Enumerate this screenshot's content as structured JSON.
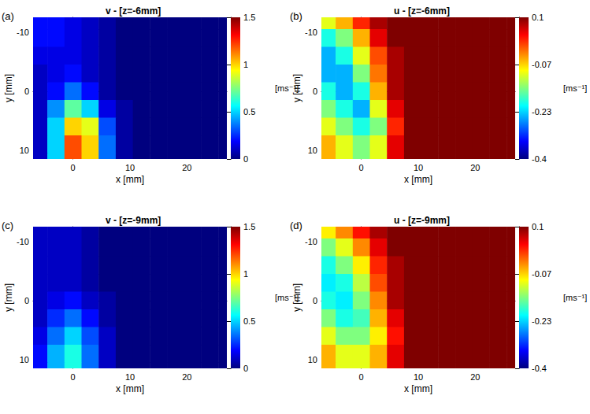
{
  "chart_data": [
    {
      "type": "heatmap",
      "panel": "(a)",
      "title": "v - [z=-6mm]",
      "x_label": "x [mm]",
      "y_label": "y [mm]",
      "grid": false,
      "xlim": [
        -7,
        27
      ],
      "ylim": [
        -12.5,
        11.5
      ],
      "xticks": [
        0,
        10,
        20
      ],
      "yticks": [
        -10,
        0,
        10
      ],
      "x": [
        -6,
        -3,
        0,
        3,
        6,
        9,
        12,
        15,
        18,
        21,
        24,
        27
      ],
      "y": [
        -12,
        -9,
        -6,
        -3,
        0,
        3,
        6,
        9,
        12
      ],
      "values": [
        [
          0.2,
          0.2,
          0.15,
          0.1,
          0.05,
          0,
          0,
          0,
          0,
          0,
          0,
          0
        ],
        [
          0.2,
          0.2,
          0.15,
          0.1,
          0.05,
          0,
          0,
          0,
          0,
          0,
          0,
          0
        ],
        [
          0.15,
          0.15,
          0.15,
          0.1,
          0.05,
          0,
          0,
          0,
          0,
          0,
          0,
          0
        ],
        [
          0.1,
          0.15,
          0.2,
          0.1,
          0.05,
          0,
          0,
          0,
          0,
          0,
          0,
          0
        ],
        [
          0.1,
          0.2,
          0.35,
          0.2,
          0.05,
          0,
          0,
          0,
          0,
          0,
          0,
          0
        ],
        [
          0.1,
          0.4,
          0.7,
          0.5,
          0.15,
          0.05,
          0,
          0,
          0,
          0,
          0,
          0
        ],
        [
          0.1,
          0.5,
          1.0,
          0.9,
          0.3,
          0.05,
          0,
          0,
          0,
          0,
          0,
          0
        ],
        [
          0.1,
          0.5,
          1.2,
          1.0,
          0.35,
          0.05,
          0,
          0,
          0,
          0,
          0,
          0
        ],
        [
          0.1,
          0.5,
          1.2,
          1.0,
          0.35,
          0.05,
          0,
          0,
          0,
          0,
          0,
          0
        ]
      ],
      "zlim": [
        0,
        1.5
      ],
      "zticks": [
        0,
        0.5,
        1,
        1.5
      ],
      "z_label": "[ms⁻¹]"
    },
    {
      "type": "heatmap",
      "panel": "(b)",
      "title": "u - [z=-6mm]",
      "x_label": "x [mm]",
      "y_label": "y [mm]",
      "grid": false,
      "xlim": [
        -7,
        27
      ],
      "ylim": [
        -12.5,
        11.5
      ],
      "xticks": [
        0,
        10,
        20
      ],
      "yticks": [
        -10,
        0,
        10
      ],
      "x": [
        -6,
        -3,
        0,
        3,
        6,
        9,
        12,
        15,
        18,
        21,
        24,
        27
      ],
      "y": [
        -12,
        -9,
        -6,
        -3,
        0,
        3,
        6,
        9,
        12
      ],
      "values": [
        [
          -0.1,
          -0.05,
          0.02,
          0.08,
          0.1,
          0.1,
          0.1,
          0.1,
          0.1,
          0.1,
          0.1,
          0.1
        ],
        [
          -0.2,
          -0.15,
          -0.05,
          0.05,
          0.1,
          0.1,
          0.1,
          0.1,
          0.1,
          0.1,
          0.1,
          0.1
        ],
        [
          -0.25,
          -0.2,
          -0.1,
          0.0,
          0.08,
          0.1,
          0.1,
          0.1,
          0.1,
          0.1,
          0.1,
          0.1
        ],
        [
          -0.25,
          -0.25,
          -0.15,
          -0.02,
          0.08,
          0.1,
          0.1,
          0.1,
          0.1,
          0.1,
          0.1,
          0.1
        ],
        [
          -0.2,
          -0.25,
          -0.2,
          -0.05,
          0.08,
          0.1,
          0.1,
          0.1,
          0.1,
          0.1,
          0.1,
          0.1
        ],
        [
          -0.15,
          -0.2,
          -0.25,
          -0.1,
          0.05,
          0.1,
          0.1,
          0.1,
          0.1,
          0.1,
          0.1,
          0.1
        ],
        [
          -0.1,
          -0.15,
          -0.2,
          -0.15,
          0.02,
          0.1,
          0.1,
          0.1,
          0.1,
          0.1,
          0.1,
          0.1
        ],
        [
          -0.05,
          -0.1,
          -0.15,
          -0.1,
          0.05,
          0.1,
          0.1,
          0.1,
          0.1,
          0.1,
          0.1,
          0.1
        ],
        [
          -0.05,
          -0.1,
          -0.15,
          -0.1,
          0.05,
          0.1,
          0.1,
          0.1,
          0.1,
          0.1,
          0.1,
          0.1
        ]
      ],
      "zlim": [
        -0.4,
        0.1
      ],
      "zticks": [
        -0.4,
        {
          "value": -0.2333,
          "label": "-0.23"
        },
        {
          "value": -0.0667,
          "label": "-0.07"
        },
        0.1
      ],
      "z_label": "[ms⁻¹]"
    },
    {
      "type": "heatmap",
      "panel": "(c)",
      "title": "v - [z=-9mm]",
      "x_label": "x [mm]",
      "y_label": "y [mm]",
      "grid": false,
      "xlim": [
        -7,
        27
      ],
      "ylim": [
        -12.5,
        11.5
      ],
      "xticks": [
        0,
        10,
        20
      ],
      "yticks": [
        -10,
        0,
        10
      ],
      "x": [
        -6,
        -3,
        0,
        3,
        6,
        9,
        12,
        15,
        18,
        21,
        24,
        27
      ],
      "y": [
        -12,
        -9,
        -6,
        -3,
        0,
        3,
        6,
        9,
        12
      ],
      "values": [
        [
          0.1,
          0.1,
          0.1,
          0.05,
          0,
          0,
          0,
          0,
          0,
          0,
          0,
          0
        ],
        [
          0.1,
          0.1,
          0.1,
          0.05,
          0,
          0,
          0,
          0,
          0,
          0,
          0,
          0
        ],
        [
          0.1,
          0.1,
          0.1,
          0.05,
          0,
          0,
          0,
          0,
          0,
          0,
          0,
          0
        ],
        [
          0.1,
          0.1,
          0.1,
          0.05,
          0,
          0,
          0,
          0,
          0,
          0,
          0,
          0
        ],
        [
          0.1,
          0.15,
          0.2,
          0.1,
          0.05,
          0,
          0,
          0,
          0,
          0,
          0,
          0
        ],
        [
          0.1,
          0.25,
          0.35,
          0.2,
          0.05,
          0,
          0,
          0,
          0,
          0,
          0,
          0
        ],
        [
          0.15,
          0.35,
          0.5,
          0.3,
          0.1,
          0,
          0,
          0,
          0,
          0,
          0,
          0
        ],
        [
          0.2,
          0.45,
          0.6,
          0.35,
          0.1,
          0,
          0,
          0,
          0,
          0,
          0,
          0
        ],
        [
          0.2,
          0.45,
          0.6,
          0.35,
          0.1,
          0,
          0,
          0,
          0,
          0,
          0,
          0
        ]
      ],
      "zlim": [
        0,
        1.5
      ],
      "zticks": [
        0,
        0.5,
        1,
        1.5
      ],
      "z_label": "[ms⁻¹]"
    },
    {
      "type": "heatmap",
      "panel": "(d)",
      "title": "u - [z=-9mm]",
      "x_label": "x [mm]",
      "y_label": "y [mm]",
      "grid": false,
      "xlim": [
        -7,
        27
      ],
      "ylim": [
        -12.5,
        11.5
      ],
      "xticks": [
        0,
        10,
        20
      ],
      "yticks": [
        -10,
        0,
        10
      ],
      "x": [
        -6,
        -3,
        0,
        3,
        6,
        9,
        12,
        15,
        18,
        21,
        24,
        27
      ],
      "y": [
        -12,
        -9,
        -6,
        -3,
        0,
        3,
        6,
        9,
        12
      ],
      "values": [
        [
          -0.08,
          -0.03,
          0.03,
          0.08,
          0.1,
          0.1,
          0.1,
          0.1,
          0.1,
          0.1,
          0.1,
          0.1
        ],
        [
          -0.15,
          -0.1,
          -0.03,
          0.05,
          0.1,
          0.1,
          0.1,
          0.1,
          0.1,
          0.1,
          0.1,
          0.1
        ],
        [
          -0.2,
          -0.15,
          -0.08,
          0.02,
          0.08,
          0.1,
          0.1,
          0.1,
          0.1,
          0.1,
          0.1,
          0.1
        ],
        [
          -0.22,
          -0.2,
          -0.12,
          0.0,
          0.08,
          0.1,
          0.1,
          0.1,
          0.1,
          0.1,
          0.1,
          0.1
        ],
        [
          -0.2,
          -0.22,
          -0.15,
          -0.03,
          0.08,
          0.1,
          0.1,
          0.1,
          0.1,
          0.1,
          0.1,
          0.1
        ],
        [
          -0.15,
          -0.2,
          -0.18,
          -0.05,
          0.05,
          0.1,
          0.1,
          0.1,
          0.1,
          0.1,
          0.1,
          0.1
        ],
        [
          -0.1,
          -0.15,
          -0.15,
          -0.08,
          0.03,
          0.1,
          0.1,
          0.1,
          0.1,
          0.1,
          0.1,
          0.1
        ],
        [
          -0.05,
          -0.1,
          -0.1,
          -0.05,
          0.05,
          0.1,
          0.1,
          0.1,
          0.1,
          0.1,
          0.1,
          0.1
        ],
        [
          -0.05,
          -0.1,
          -0.1,
          -0.05,
          0.05,
          0.1,
          0.1,
          0.1,
          0.1,
          0.1,
          0.1,
          0.1
        ]
      ],
      "zlim": [
        -0.4,
        0.1
      ],
      "zticks": [
        -0.4,
        {
          "value": -0.2333,
          "label": "-0.23"
        },
        {
          "value": -0.0667,
          "label": "-0.07"
        },
        0.1
      ],
      "z_label": "[ms⁻¹]"
    }
  ]
}
